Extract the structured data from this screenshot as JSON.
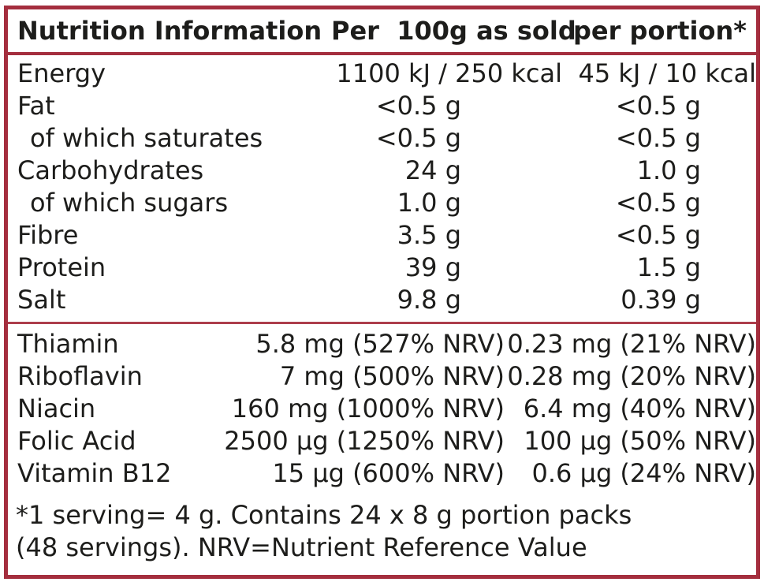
{
  "colors": {
    "border": "#a42e3e",
    "divider": "#ad3d4c",
    "text": "#1d1d1b",
    "background": "#ffffff"
  },
  "header": {
    "col1": "Nutrition Information",
    "col2": "Per  100g as sold",
    "col3": "per portion*"
  },
  "nutrients": {
    "rows": [
      {
        "label": "Energy",
        "per100g": "1100 kJ / 250 kcal",
        "perPortion": "45 kJ / 10 kcal"
      },
      {
        "label": "Fat",
        "per100g": "<0.5 g",
        "perPortion": "<0.5 g"
      },
      {
        "label": "of which saturates",
        "per100g": "<0.5 g",
        "perPortion": "<0.5 g"
      },
      {
        "label": "Carbohydrates",
        "per100g": "24 g",
        "perPortion": "1.0 g"
      },
      {
        "label": "of which sugars",
        "per100g": "1.0 g",
        "perPortion": "<0.5 g"
      },
      {
        "label": "Fibre",
        "per100g": "3.5 g",
        "perPortion": "<0.5 g"
      },
      {
        "label": "Protein",
        "per100g": "39 g",
        "perPortion": "1.5 g"
      },
      {
        "label": "Salt",
        "per100g": "9.8 g",
        "perPortion": "0.39 g"
      }
    ]
  },
  "vitamins": {
    "rows": [
      {
        "label": "Thiamin",
        "per100g": "5.8 mg (527% NRV)",
        "perPortion": "0.23 mg (21% NRV)"
      },
      {
        "label": "Riboflavin",
        "per100g": "7 mg (500% NRV)",
        "perPortion": "0.28 mg (20% NRV)"
      },
      {
        "label": "Niacin",
        "per100g": "160 mg (1000% NRV)",
        "perPortion": "6.4 mg (40% NRV)"
      },
      {
        "label": "Folic Acid",
        "per100g": "2500 μg (1250% NRV)",
        "perPortion": "100 μg (50% NRV)"
      },
      {
        "label": "Vitamin B12",
        "per100g": "15 μg (600% NRV)",
        "perPortion": "0.6 μg (24% NRV)"
      }
    ]
  },
  "footnote": {
    "line1": "*1 serving= 4 g. Contains 24 x 8 g portion packs",
    "line2": "(48 servings). NRV=Nutrient Reference Value"
  }
}
